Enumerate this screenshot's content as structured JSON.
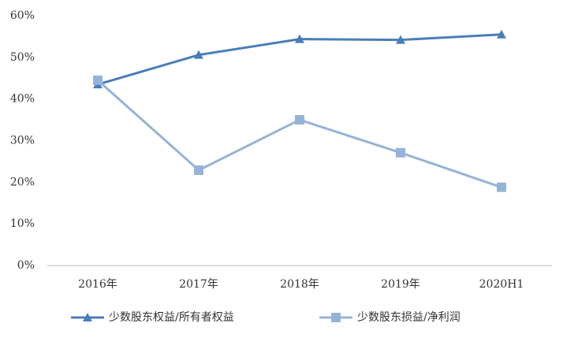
{
  "chart_data": {
    "type": "line",
    "categories": [
      "2016年",
      "2017年",
      "2018年",
      "2019年",
      "2020H1"
    ],
    "series": [
      {
        "name": "少数股东权益/所有者权益",
        "color": "#4a7db8",
        "marker": "triangle",
        "values": [
          43.5,
          50.6,
          54.4,
          54.2,
          55.5
        ]
      },
      {
        "name": "少数股东损益/净利润",
        "color": "#95b3d7",
        "marker": "square",
        "values": [
          44.5,
          22.9,
          35,
          27.1,
          18.8
        ]
      }
    ],
    "ylim": [
      0,
      60
    ],
    "yticks": [
      {
        "value": 0,
        "label": "0%"
      },
      {
        "value": 10,
        "label": "10%"
      },
      {
        "value": 20,
        "label": "20%"
      },
      {
        "value": 30,
        "label": "30%"
      },
      {
        "value": 40,
        "label": "40%"
      },
      {
        "value": 50,
        "label": "50%"
      },
      {
        "value": 60,
        "label": "60%"
      }
    ],
    "grid": false,
    "legend": "bottom"
  }
}
